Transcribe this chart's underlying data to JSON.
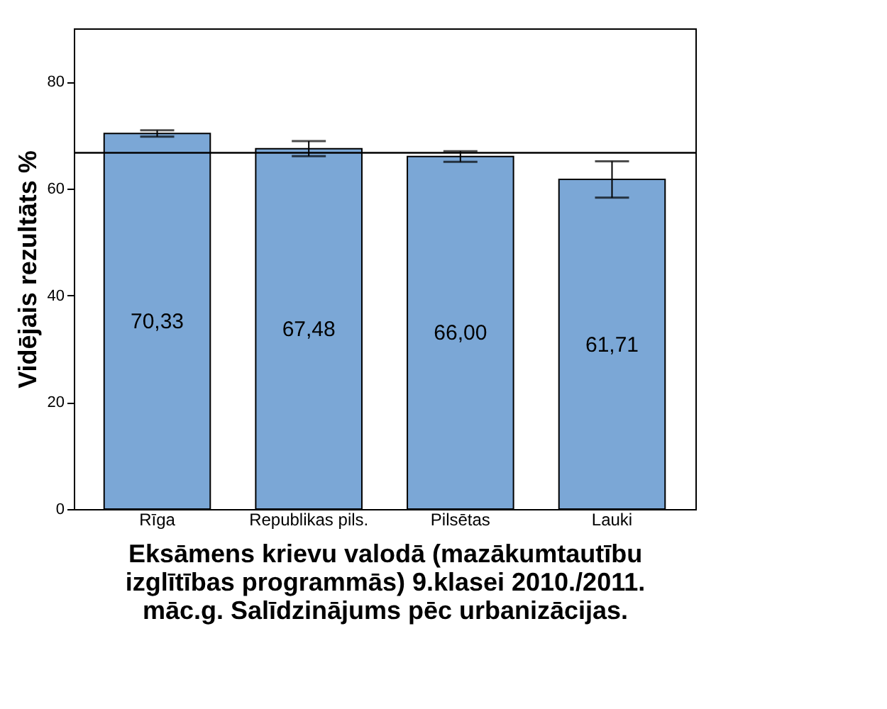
{
  "chart_data": {
    "type": "bar",
    "categories": [
      "Rīga",
      "Republikas pils.",
      "Pilsētas",
      "Lauki"
    ],
    "values": [
      70.33,
      67.48,
      66.0,
      61.71
    ],
    "value_labels": [
      "70,33",
      "67,48",
      "66,00",
      "61,71"
    ],
    "errors": [
      0.6,
      1.4,
      1.0,
      3.4
    ],
    "color": "#7ba7d6",
    "xlabel": "Eksāmens krievu valodā (mazākumtautību\nizglītības programmās) 9.klasei 2010./2011.\nmāc.g. Salīdzinājums pēc urbanizācijas.",
    "ylabel": "Vidējais rezultāts %",
    "ylim": [
      0,
      90
    ],
    "yticks": [
      0,
      20,
      40,
      60,
      80
    ],
    "ref_lines": [
      {
        "axis": "y",
        "value": 66.7,
        "color": "#000000"
      }
    ],
    "grid": false
  }
}
